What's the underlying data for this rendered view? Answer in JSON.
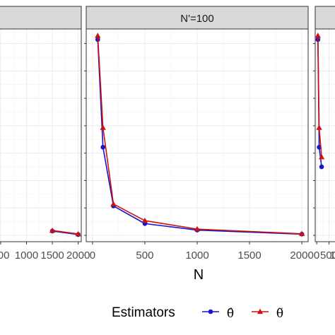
{
  "chart_data": {
    "type": "line",
    "facets": [
      {
        "strip": "",
        "x": [
          1500,
          2000
        ]
      },
      {
        "strip": "N'=100",
        "x": [
          50,
          100,
          200,
          500,
          1000,
          2000
        ]
      },
      {
        "strip": "",
        "x": [
          50,
          100,
          200
        ]
      }
    ],
    "x_ticks": [
      0,
      500,
      1000,
      1500,
      2000
    ],
    "x_tick_labels": [
      "0",
      "500",
      "1000",
      "1500",
      "2000"
    ],
    "xlim": [
      -60,
      2060
    ],
    "ylim": [
      0,
      1
    ],
    "y_gridlines": [
      0.0,
      0.14,
      0.28,
      0.42,
      0.56,
      0.7,
      0.84,
      0.98
    ],
    "xlabel": "N",
    "ylabel": "",
    "grid": true,
    "legend": {
      "title": "Estimators",
      "position": "bottom",
      "entries": [
        {
          "symbol": "θ̂",
          "color": "#1515cc",
          "marker": "circle"
        },
        {
          "symbol": "θ̃",
          "color": "#cc1111",
          "marker": "triangle"
        }
      ]
    },
    "series": [
      {
        "label": "θ̂",
        "color": "#1515cc",
        "marker": "circle",
        "facet_values": [
          {
            "x": [
              1500,
              2000
            ],
            "y": [
              0.022,
              0.004
            ]
          },
          {
            "x": [
              50,
              100,
              200,
              500,
              1000,
              2000
            ],
            "y": [
              1.0,
              0.45,
              0.15,
              0.06,
              0.027,
              0.006
            ]
          },
          {
            "x": [
              50,
              100,
              200
            ],
            "y": [
              1.0,
              0.45,
              0.35
            ]
          }
        ]
      },
      {
        "label": "θ̃",
        "color": "#cc1111",
        "marker": "triangle",
        "facet_values": [
          {
            "x": [
              1500,
              2000
            ],
            "y": [
              0.025,
              0.007
            ]
          },
          {
            "x": [
              50,
              100,
              200,
              500,
              1000,
              2000
            ],
            "y": [
              1.02,
              0.55,
              0.16,
              0.075,
              0.032,
              0.008
            ]
          },
          {
            "x": [
              50,
              100,
              200
            ],
            "y": [
              1.02,
              0.55,
              0.4
            ]
          }
        ]
      }
    ]
  }
}
